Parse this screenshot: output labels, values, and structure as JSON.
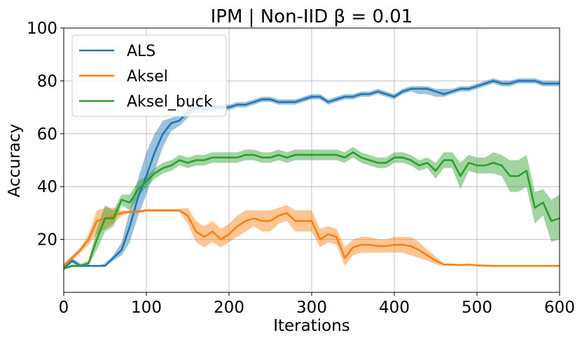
{
  "chart_data": {
    "type": "line",
    "title": "IPM | Non-IID β = 0.01",
    "xlabel": "Iterations",
    "ylabel": "Accuracy",
    "xlim": [
      0,
      600
    ],
    "ylim": [
      0,
      100
    ],
    "x_ticks": [
      0,
      100,
      200,
      300,
      400,
      500,
      600
    ],
    "y_ticks": [
      20,
      40,
      60,
      80,
      100
    ],
    "grid": true,
    "legend_position": "top-left",
    "x": [
      0,
      10,
      20,
      30,
      40,
      50,
      60,
      70,
      80,
      90,
      100,
      110,
      120,
      130,
      140,
      150,
      160,
      170,
      180,
      190,
      200,
      210,
      220,
      230,
      240,
      250,
      260,
      270,
      280,
      290,
      300,
      310,
      320,
      330,
      340,
      350,
      360,
      370,
      380,
      390,
      400,
      410,
      420,
      430,
      440,
      450,
      460,
      470,
      480,
      490,
      500,
      510,
      520,
      530,
      540,
      550,
      560,
      570,
      580,
      590,
      600
    ],
    "series": [
      {
        "name": "ALS",
        "color": "#1f77b4",
        "values": [
          9,
          12,
          10,
          10,
          10,
          10,
          13,
          16,
          25,
          36,
          44,
          53,
          60,
          64,
          65,
          68,
          70,
          69,
          70,
          70,
          70,
          71,
          71,
          72,
          73,
          73,
          72,
          72,
          72,
          73,
          74,
          74,
          72,
          73,
          74,
          74,
          75,
          75,
          76,
          75,
          74,
          76,
          77,
          77,
          77,
          76,
          75,
          76,
          77,
          77,
          78,
          79,
          80,
          79,
          79,
          80,
          80,
          80,
          79,
          79,
          79
        ],
        "lower": [
          9,
          11,
          10,
          10,
          10,
          10,
          12,
          14,
          19,
          29,
          37,
          46,
          55,
          61,
          63,
          66,
          69,
          68,
          69,
          69,
          69,
          70,
          70,
          71,
          72,
          72,
          71,
          71,
          71,
          72,
          73,
          73,
          71,
          72,
          73,
          73,
          74,
          74,
          75,
          74,
          73,
          75,
          76,
          75,
          75,
          74,
          74,
          75,
          76,
          76,
          77,
          78,
          79,
          78,
          78,
          79,
          79,
          79,
          78,
          78,
          78
        ],
        "upper": [
          10,
          13,
          11,
          10,
          10,
          11,
          14,
          19,
          31,
          43,
          53,
          60,
          65,
          66,
          67,
          70,
          71,
          70,
          71,
          71,
          71,
          72,
          72,
          73,
          74,
          74,
          73,
          73,
          73,
          74,
          75,
          75,
          73,
          74,
          75,
          75,
          76,
          76,
          77,
          76,
          75,
          77,
          78,
          78,
          78,
          77,
          77,
          77,
          78,
          78,
          79,
          80,
          81,
          80,
          80,
          81,
          81,
          81,
          80,
          80,
          80
        ]
      },
      {
        "name": "Aksel",
        "color": "#ff7f0e",
        "values": [
          10,
          13,
          16,
          20,
          27,
          28,
          29,
          30,
          30.5,
          30.5,
          31,
          31,
          31,
          31,
          31,
          29,
          23,
          21,
          23,
          20,
          22,
          25,
          27,
          28,
          27,
          27,
          29,
          30,
          27,
          27,
          27,
          20,
          22,
          21,
          13,
          17,
          18,
          18,
          17.5,
          17.5,
          18,
          18,
          17.5,
          16,
          14,
          12,
          10.5,
          10.5,
          10.3,
          10.5,
          10.2,
          10.1,
          10,
          10,
          10,
          10,
          10,
          10,
          10,
          10,
          10
        ],
        "lower": [
          9,
          12,
          15,
          18,
          22,
          24,
          26,
          29,
          30,
          30,
          30.5,
          30.5,
          30.5,
          30.5,
          30.5,
          26,
          19,
          17,
          19,
          17,
          19,
          21,
          23,
          25,
          23,
          23,
          26,
          27,
          23,
          23,
          23,
          17,
          19,
          18,
          10,
          14,
          15,
          15,
          15,
          15,
          15,
          15,
          14,
          13,
          12,
          10.5,
          10.2,
          10.2,
          10,
          10.2,
          10,
          10,
          9.8,
          9.8,
          9.8,
          9.8,
          9.8,
          9.8,
          9.8,
          9.8,
          9.8
        ],
        "upper": [
          11,
          14,
          17,
          22,
          31,
          32,
          32,
          31,
          31,
          31,
          31.5,
          31.5,
          31.5,
          31.5,
          31.5,
          32,
          27,
          25,
          27,
          24,
          26,
          29,
          31,
          31,
          31,
          31,
          32,
          33,
          31,
          31,
          31,
          24,
          25,
          24,
          17,
          20,
          21,
          21,
          20,
          20,
          21,
          21,
          21,
          19,
          16,
          13.5,
          10.8,
          10.8,
          10.6,
          10.8,
          10.4,
          10.2,
          10.2,
          10.2,
          10.2,
          10.2,
          10.2,
          10.2,
          10.2,
          10.2,
          10.2
        ]
      },
      {
        "name": "Aksel_buck",
        "color": "#2ca02c",
        "values": [
          9,
          10,
          10,
          11,
          20,
          28,
          28,
          35,
          34,
          39,
          42,
          45,
          47,
          48,
          50,
          49,
          50,
          50,
          51,
          51,
          51,
          51,
          52,
          52,
          51,
          51,
          52,
          51,
          52,
          52,
          52,
          52,
          52,
          52,
          51,
          53,
          51,
          50,
          49,
          49,
          51,
          51,
          50,
          48,
          49,
          46,
          50,
          50,
          44,
          49,
          48,
          48,
          49,
          48,
          44,
          44,
          46,
          32,
          34,
          27,
          28
        ],
        "lower": [
          8.5,
          9.5,
          9.5,
          10,
          16,
          23,
          25,
          33,
          31,
          36,
          40,
          43,
          45,
          46,
          48,
          47,
          48,
          48,
          49,
          49,
          49,
          49,
          50,
          50,
          49,
          49,
          50,
          49,
          50,
          50,
          50,
          50,
          50,
          50,
          49,
          51,
          49,
          48,
          47,
          47,
          49,
          49,
          48,
          46,
          47,
          43,
          47,
          47,
          39,
          46,
          45,
          45,
          45,
          44,
          38,
          38,
          40,
          26,
          29,
          19,
          20
        ],
        "upper": [
          9.5,
          10.5,
          10.5,
          12,
          24,
          33,
          31,
          37,
          37,
          42,
          44,
          47,
          49,
          50,
          52,
          51,
          52,
          52,
          53,
          53,
          53,
          53,
          54,
          54,
          53,
          53,
          54,
          53,
          54,
          54,
          54,
          54,
          54,
          54,
          53,
          55,
          53,
          52,
          51,
          51,
          53,
          53,
          52,
          50,
          51,
          49,
          53,
          53,
          49,
          52,
          51,
          51,
          53,
          52,
          50,
          50,
          52,
          38,
          39,
          35,
          37
        ]
      }
    ]
  }
}
